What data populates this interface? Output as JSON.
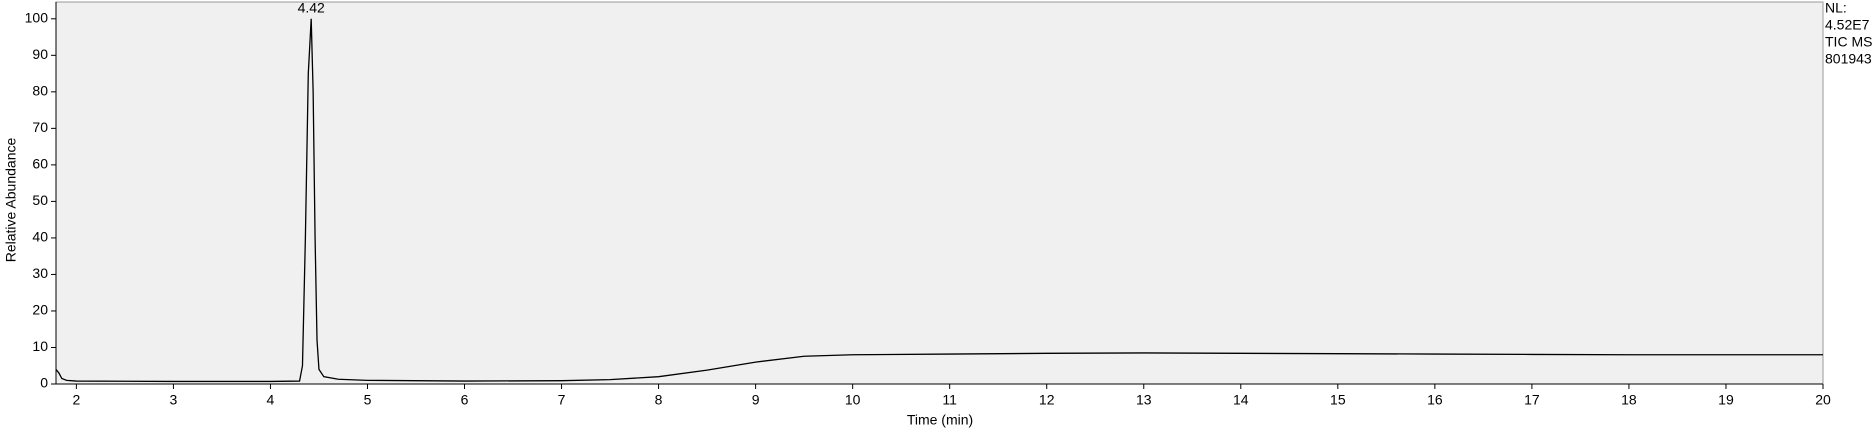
{
  "chart_data": {
    "type": "line",
    "xlabel": "Time (min)",
    "ylabel": "Relative Abundance",
    "x": [
      1.79,
      1.82,
      1.85,
      1.9,
      2.0,
      3.0,
      4.0,
      4.3,
      4.33,
      4.36,
      4.39,
      4.42,
      4.44,
      4.46,
      4.48,
      4.5,
      4.55,
      4.7,
      5.0,
      6.0,
      7.0,
      7.5,
      8.0,
      8.5,
      9.0,
      9.5,
      10.0,
      11.0,
      12.0,
      13.0,
      14.0,
      15.0,
      16.0,
      17.0,
      18.0,
      19.0,
      20.0
    ],
    "values": [
      4,
      3,
      1.5,
      1,
      0.8,
      0.7,
      0.7,
      0.8,
      5,
      40,
      85,
      100,
      80,
      40,
      12,
      4,
      2,
      1.3,
      1,
      0.8,
      0.9,
      1.2,
      2,
      3.8,
      6,
      7.6,
      8,
      8.2,
      8.4,
      8.5,
      8.4,
      8.3,
      8.2,
      8.1,
      8,
      8,
      8
    ],
    "color": "#000000",
    "xlim": [
      1.79,
      20
    ],
    "ylim": [
      0,
      104.6
    ],
    "xticks": [
      2,
      3,
      4,
      5,
      6,
      7,
      8,
      9,
      10,
      11,
      12,
      13,
      14,
      15,
      16,
      17,
      18,
      19,
      20
    ],
    "yticks": [
      0,
      10,
      20,
      30,
      40,
      50,
      60,
      70,
      80,
      90,
      100
    ],
    "annotations": [
      {
        "text": "4.42",
        "x": 4.42,
        "y": 100
      }
    ],
    "info": [
      "NL:",
      "4.52E7",
      "TIC  MS",
      "801943"
    ]
  }
}
